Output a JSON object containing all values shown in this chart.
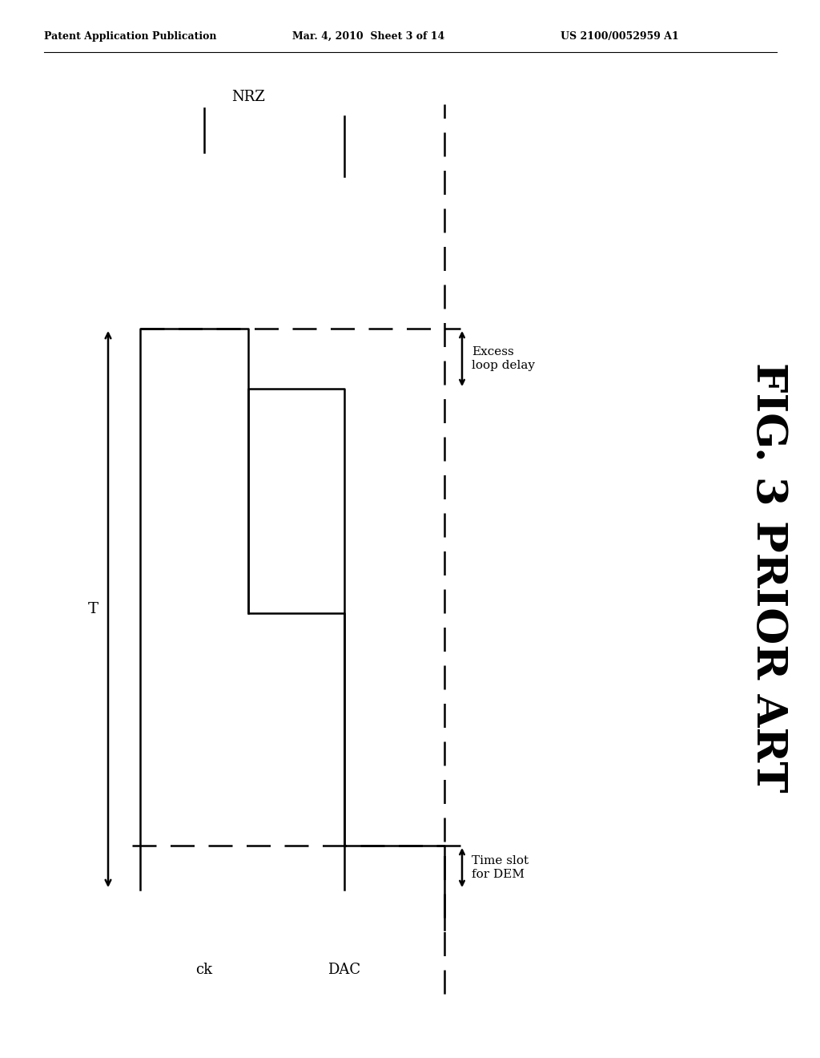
{
  "header_left": "Patent Application Publication",
  "header_mid": "Mar. 4, 2010  Sheet 3 of 14",
  "header_right": "US 2100/0052959 A1",
  "fig_label": "FIG. 3 PRIOR ART",
  "bg_color": "#ffffff",
  "line_color": "#000000",
  "nrz_label": "NRZ",
  "ck_label": "ck",
  "dac_label": "DAC",
  "T_label": "T",
  "excess_label": "Excess\nloop delay",
  "timeslot_label": "Time slot\nfor DEM"
}
